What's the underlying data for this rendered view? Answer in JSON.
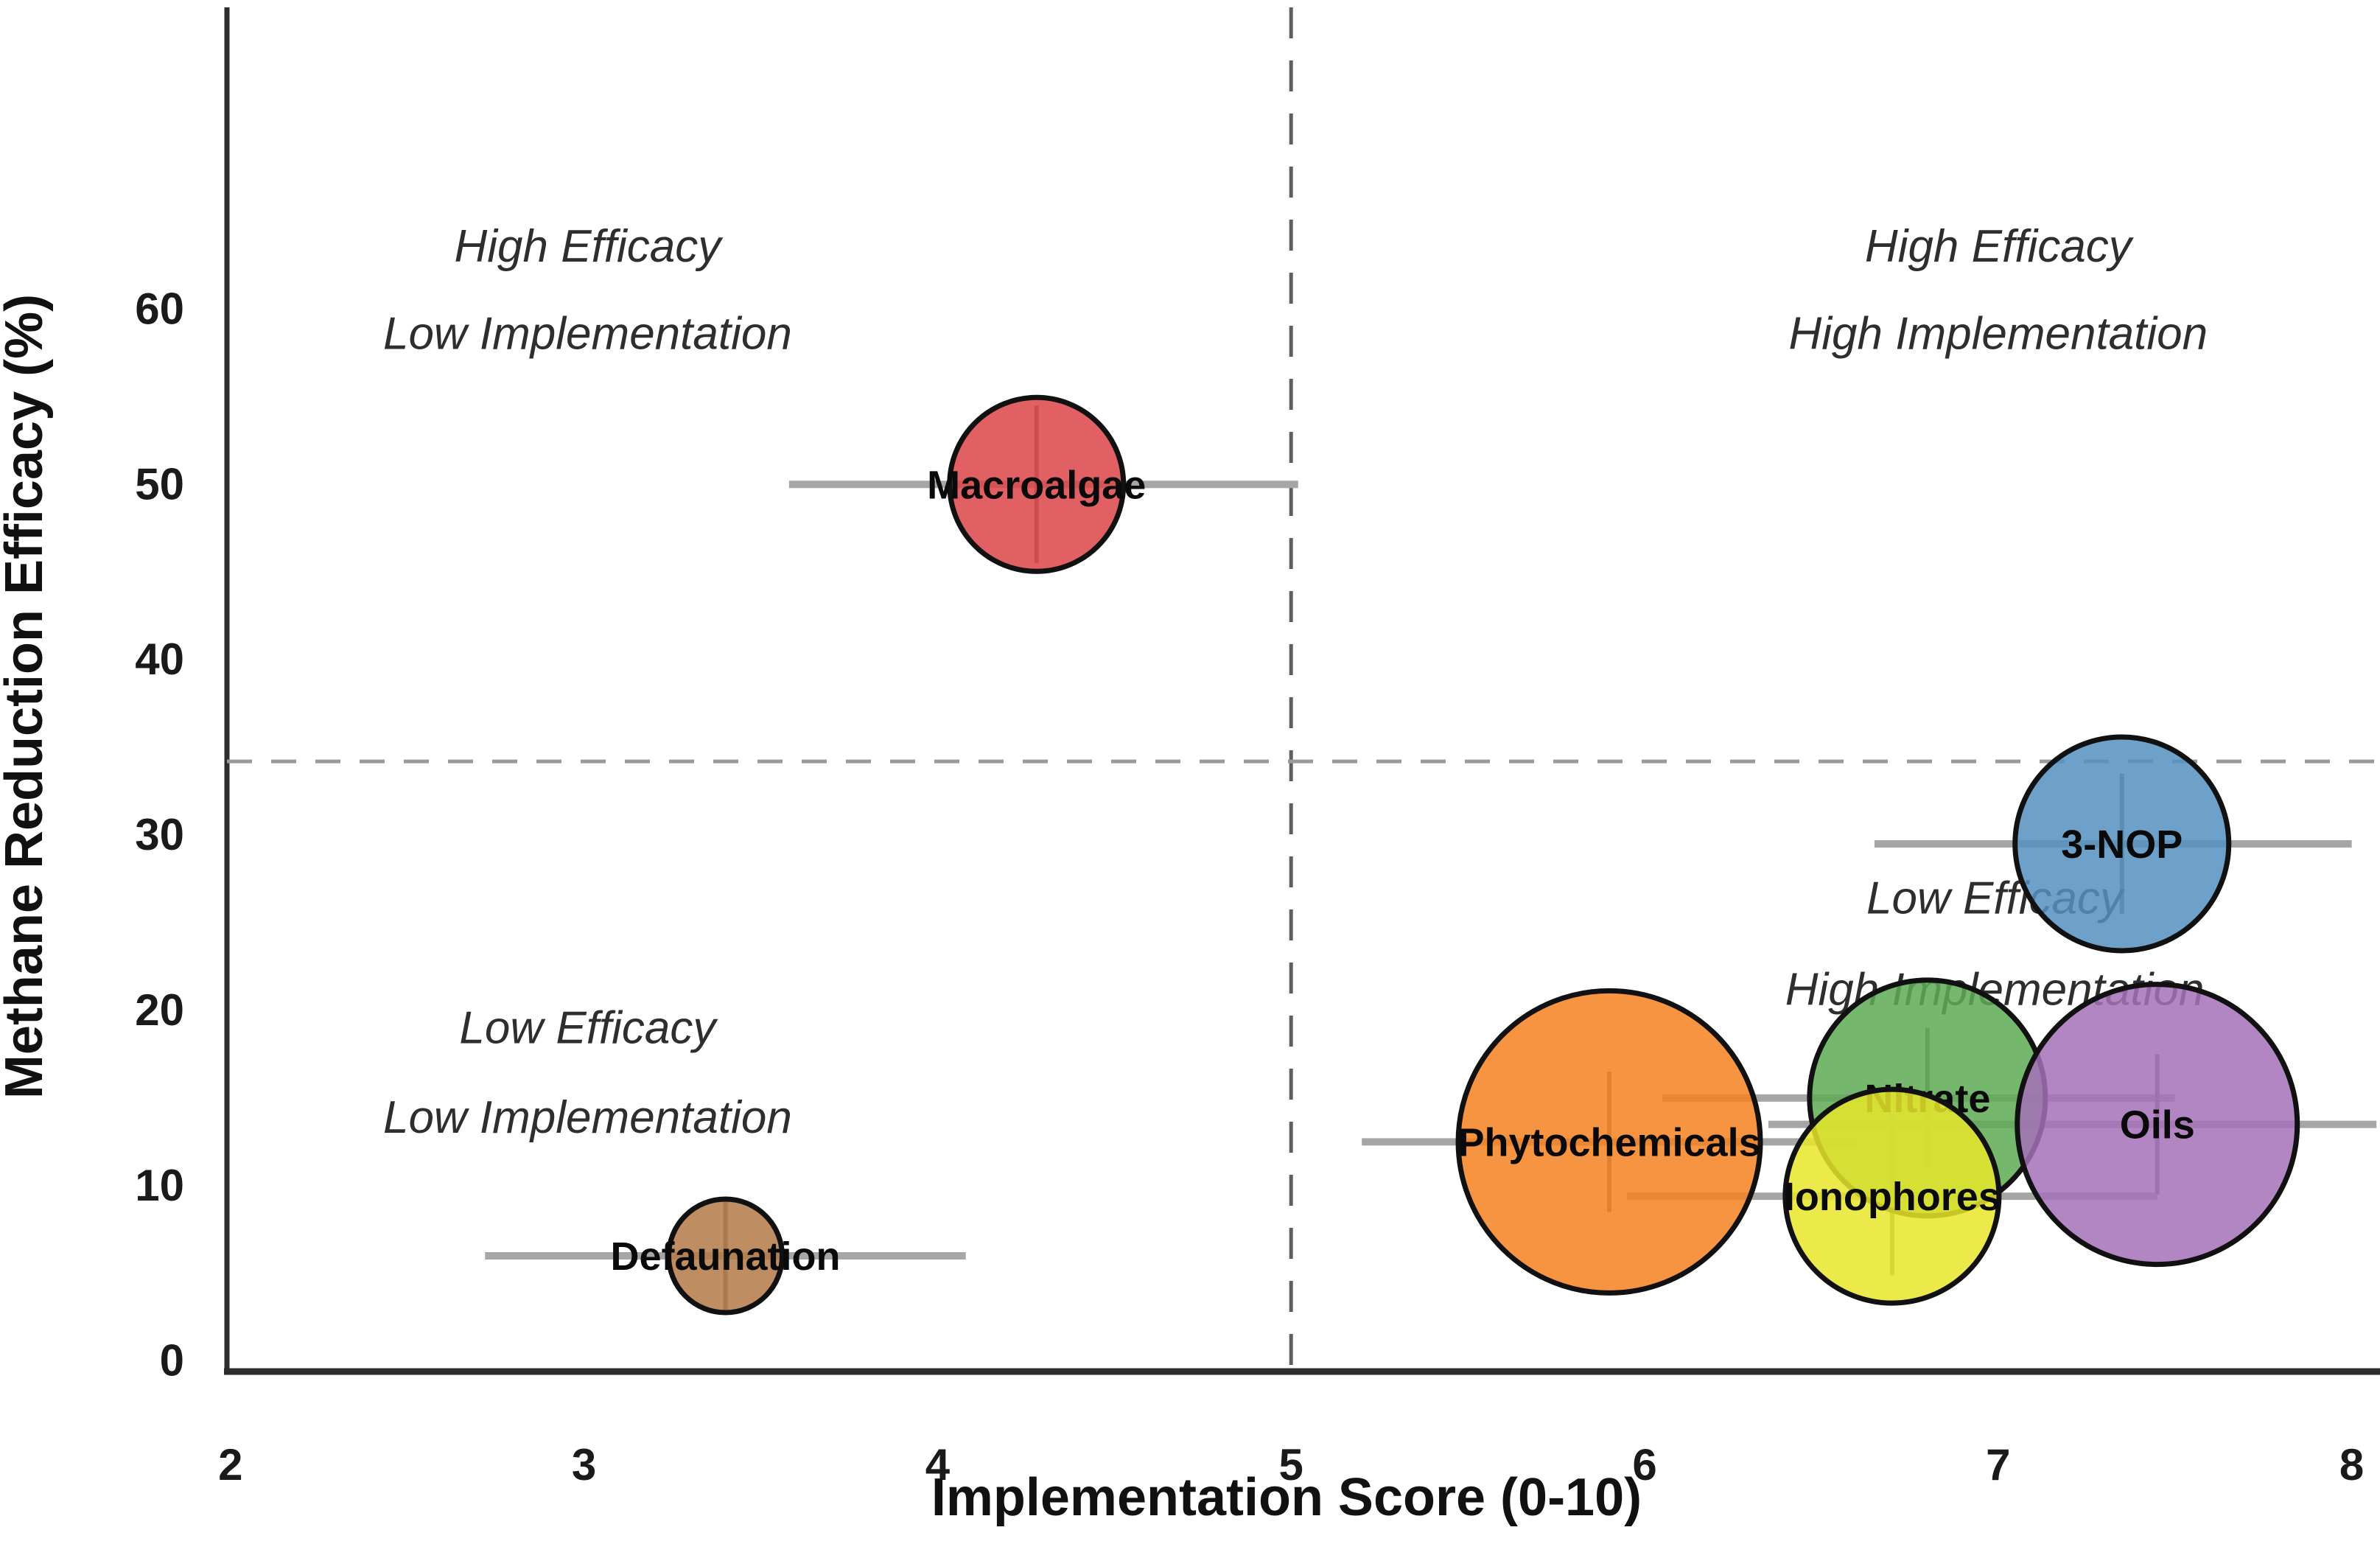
{
  "chart_data": {
    "type": "scatter",
    "title": "",
    "xlabel": "Implementation Score (0-10)",
    "ylabel": "Methane Reduction Efficacy (%)",
    "xlim": [
      1.99,
      8.08
    ],
    "ylim": [
      -0.6,
      77.0
    ],
    "xticks": [
      2,
      3,
      4,
      5,
      6,
      7,
      8
    ],
    "yticks": [
      0,
      10,
      20,
      30,
      40,
      50,
      60
    ],
    "grid": false,
    "legend": false,
    "reference_lines": {
      "vertical_x": 5.0,
      "horizontal_y": 34.2,
      "style": "dashed",
      "vertical_color": "#5f5f5f",
      "horizontal_color": "#9a9a9a"
    },
    "quadrant_labels": [
      {
        "name": "top-left",
        "x": 3.01,
        "lines": [
          {
            "text": "High Efficacy",
            "y": 63.6
          },
          {
            "text": "Low Implementation",
            "y": 58.6
          }
        ]
      },
      {
        "name": "top-right",
        "x": 7.0,
        "lines": [
          {
            "text": "High Efficacy",
            "y": 63.6
          },
          {
            "text": "High Implementation",
            "y": 58.6
          }
        ]
      },
      {
        "name": "bottom-left",
        "x": 3.01,
        "lines": [
          {
            "text": "Low Efficacy",
            "y": 19.0
          },
          {
            "text": "Low Implementation",
            "y": 13.9
          }
        ]
      },
      {
        "name": "bottom-right",
        "x": 6.99,
        "lines": [
          {
            "text": "Low Efficacy",
            "y": 26.4
          },
          {
            "text": "High Implementation",
            "y": 21.2
          }
        ]
      }
    ],
    "series": [
      {
        "label": "Phytochemicals",
        "x": 5.9,
        "y": 12.5,
        "x_err": [
          5.2,
          6.6
        ],
        "y_err": [
          8.5,
          16.5
        ],
        "radius_px": 205,
        "color": "#f58120",
        "circle_z": 1,
        "label_z": 2
      },
      {
        "label": "Nitrate",
        "x": 6.8,
        "y": 15.0,
        "x_err": [
          6.05,
          7.5
        ],
        "y_err": [
          11.0,
          19.0
        ],
        "radius_px": 160,
        "color": "#5dac53",
        "circle_z": 3,
        "label_z": 4
      },
      {
        "label": "Ionophores",
        "x": 6.7,
        "y": 9.4,
        "x_err": [
          5.95,
          7.45
        ],
        "y_err": [
          4.9,
          13.9
        ],
        "radius_px": 145,
        "color": "#e8e62a",
        "circle_z": 5,
        "label_z": 7
      },
      {
        "label": "Oils",
        "x": 7.45,
        "y": 13.5,
        "x_err": [
          6.35,
          8.07
        ],
        "y_err": [
          9.5,
          17.5
        ],
        "radius_px": 190,
        "color": "#a571b8",
        "circle_z": 6,
        "label_z": 8
      },
      {
        "label": "Macroalgae",
        "x": 4.28,
        "y": 50.0,
        "x_err": [
          3.58,
          5.02
        ],
        "y_err": [
          45.5,
          54.5
        ],
        "radius_px": 118,
        "color": "#db4448",
        "circle_z": 9,
        "label_z": 10
      },
      {
        "label": "Defaunation",
        "x": 3.4,
        "y": 6.0,
        "x_err": [
          2.72,
          4.08
        ],
        "y_err": [
          2.9,
          9.1
        ],
        "radius_px": 77,
        "color": "#b37947",
        "circle_z": 11,
        "label_z": 12
      },
      {
        "label": "3-NOP",
        "x": 7.35,
        "y": 29.5,
        "x_err": [
          6.65,
          8.0
        ],
        "y_err": [
          25.5,
          33.5
        ],
        "radius_px": 145,
        "color": "#5490c1",
        "circle_z": 13,
        "label_z": 14
      }
    ],
    "style": {
      "fill_opacity": 0.85,
      "edge_color": "#111111",
      "edge_width": 7,
      "errorbar_h_color": "#a6a6a6",
      "errorbar_h_width": 10,
      "errorbar_v_color": "#777777",
      "errorbar_v_width": 6,
      "spine_color": "#2d2d2d",
      "background": "#ffffff"
    }
  }
}
